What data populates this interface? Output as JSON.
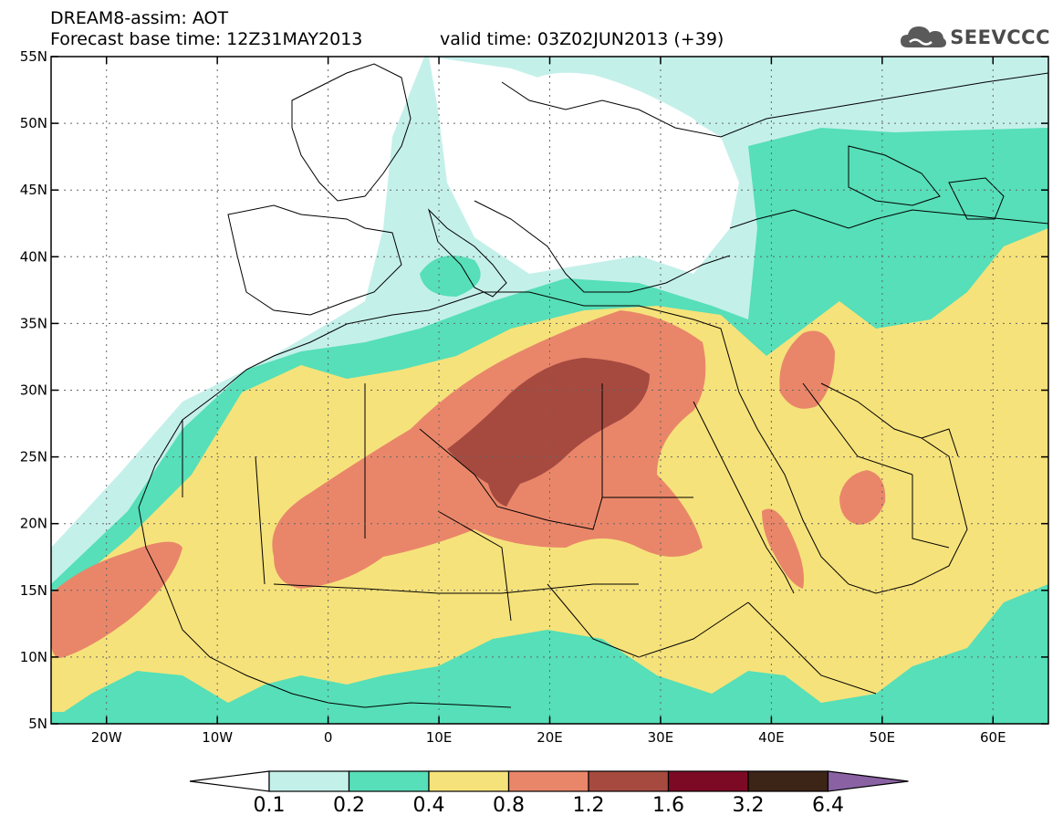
{
  "header": {
    "line1": "DREAM8-assim: AOT",
    "line2": "Forecast base time: 12Z31MAY2013",
    "line3": "valid time: 03Z02JUN2013 (+39)"
  },
  "logo": {
    "text": "SEEVCCC",
    "icon": "cloud-logo-icon"
  },
  "map": {
    "lon_range": [
      -25,
      65
    ],
    "lat_range": [
      5,
      55
    ],
    "grid": true,
    "lon_ticks": [
      {
        "value": -20,
        "label": "20W"
      },
      {
        "value": -10,
        "label": "10W"
      },
      {
        "value": 0,
        "label": "0"
      },
      {
        "value": 10,
        "label": "10E"
      },
      {
        "value": 20,
        "label": "20E"
      },
      {
        "value": 30,
        "label": "30E"
      },
      {
        "value": 40,
        "label": "40E"
      },
      {
        "value": 50,
        "label": "50E"
      },
      {
        "value": 60,
        "label": "60E"
      }
    ],
    "lat_ticks": [
      {
        "value": 55,
        "label": "55N"
      },
      {
        "value": 50,
        "label": "50N"
      },
      {
        "value": 45,
        "label": "45N"
      },
      {
        "value": 40,
        "label": "40N"
      },
      {
        "value": 35,
        "label": "35N"
      },
      {
        "value": 30,
        "label": "30N"
      },
      {
        "value": 25,
        "label": "25N"
      },
      {
        "value": 20,
        "label": "20N"
      },
      {
        "value": 15,
        "label": "15N"
      },
      {
        "value": 10,
        "label": "10N"
      },
      {
        "value": 5,
        "label": "5N"
      }
    ]
  },
  "colorbar": {
    "levels": [
      "0.1",
      "0.2",
      "0.4",
      "0.8",
      "1.2",
      "1.6",
      "3.2",
      "6.4"
    ],
    "colors": [
      "#ffffff",
      "#c4f0ea",
      "#56dfb8",
      "#f6e27a",
      "#e9866a",
      "#a64a40",
      "#7c0a24",
      "#3c2416",
      "#8a62a4"
    ]
  }
}
